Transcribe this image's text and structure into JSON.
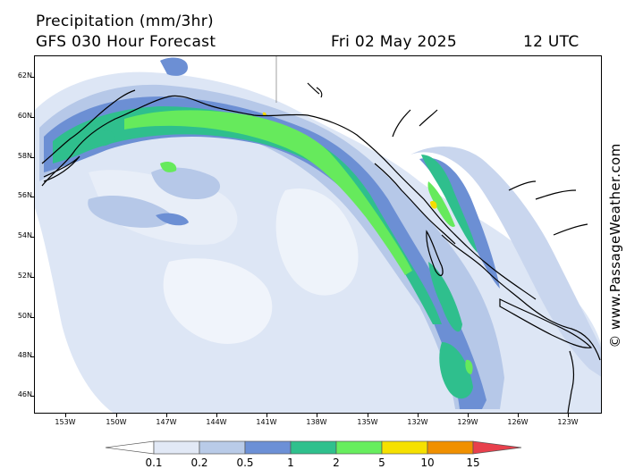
{
  "title": "Precipitation (mm/3hr)",
  "subtitle": "GFS 030 Hour Forecast",
  "date": "Fri 02 May 2025",
  "time": "12 UTC",
  "credit": "© www.PassageWeather.com",
  "lat_labels": [
    "62N",
    "60N",
    "58N",
    "56N",
    "54N",
    "52N",
    "50N",
    "48N",
    "46N"
  ],
  "lon_labels": [
    "153W",
    "150W",
    "147W",
    "144W",
    "141W",
    "138W",
    "135W",
    "132W",
    "129W",
    "126W",
    "123W"
  ],
  "legend": {
    "thresholds": [
      "0.1",
      "0.2",
      "0.5",
      "1",
      "2",
      "5",
      "10",
      "15"
    ],
    "colors": [
      "#e2e9f6",
      "#b9cbe8",
      "#6c90d6",
      "#2fc08d",
      "#67ee5e",
      "#f6e100",
      "#f09000",
      "#e8404c"
    ]
  },
  "map_colors": {
    "light": "#dde6f5",
    "pale": "#b6c8e8",
    "blue": "#6c8fd4",
    "teal": "#2fbf8d",
    "green": "#66ea5c",
    "yellow": "#f5dd00",
    "coast": "#000000"
  }
}
